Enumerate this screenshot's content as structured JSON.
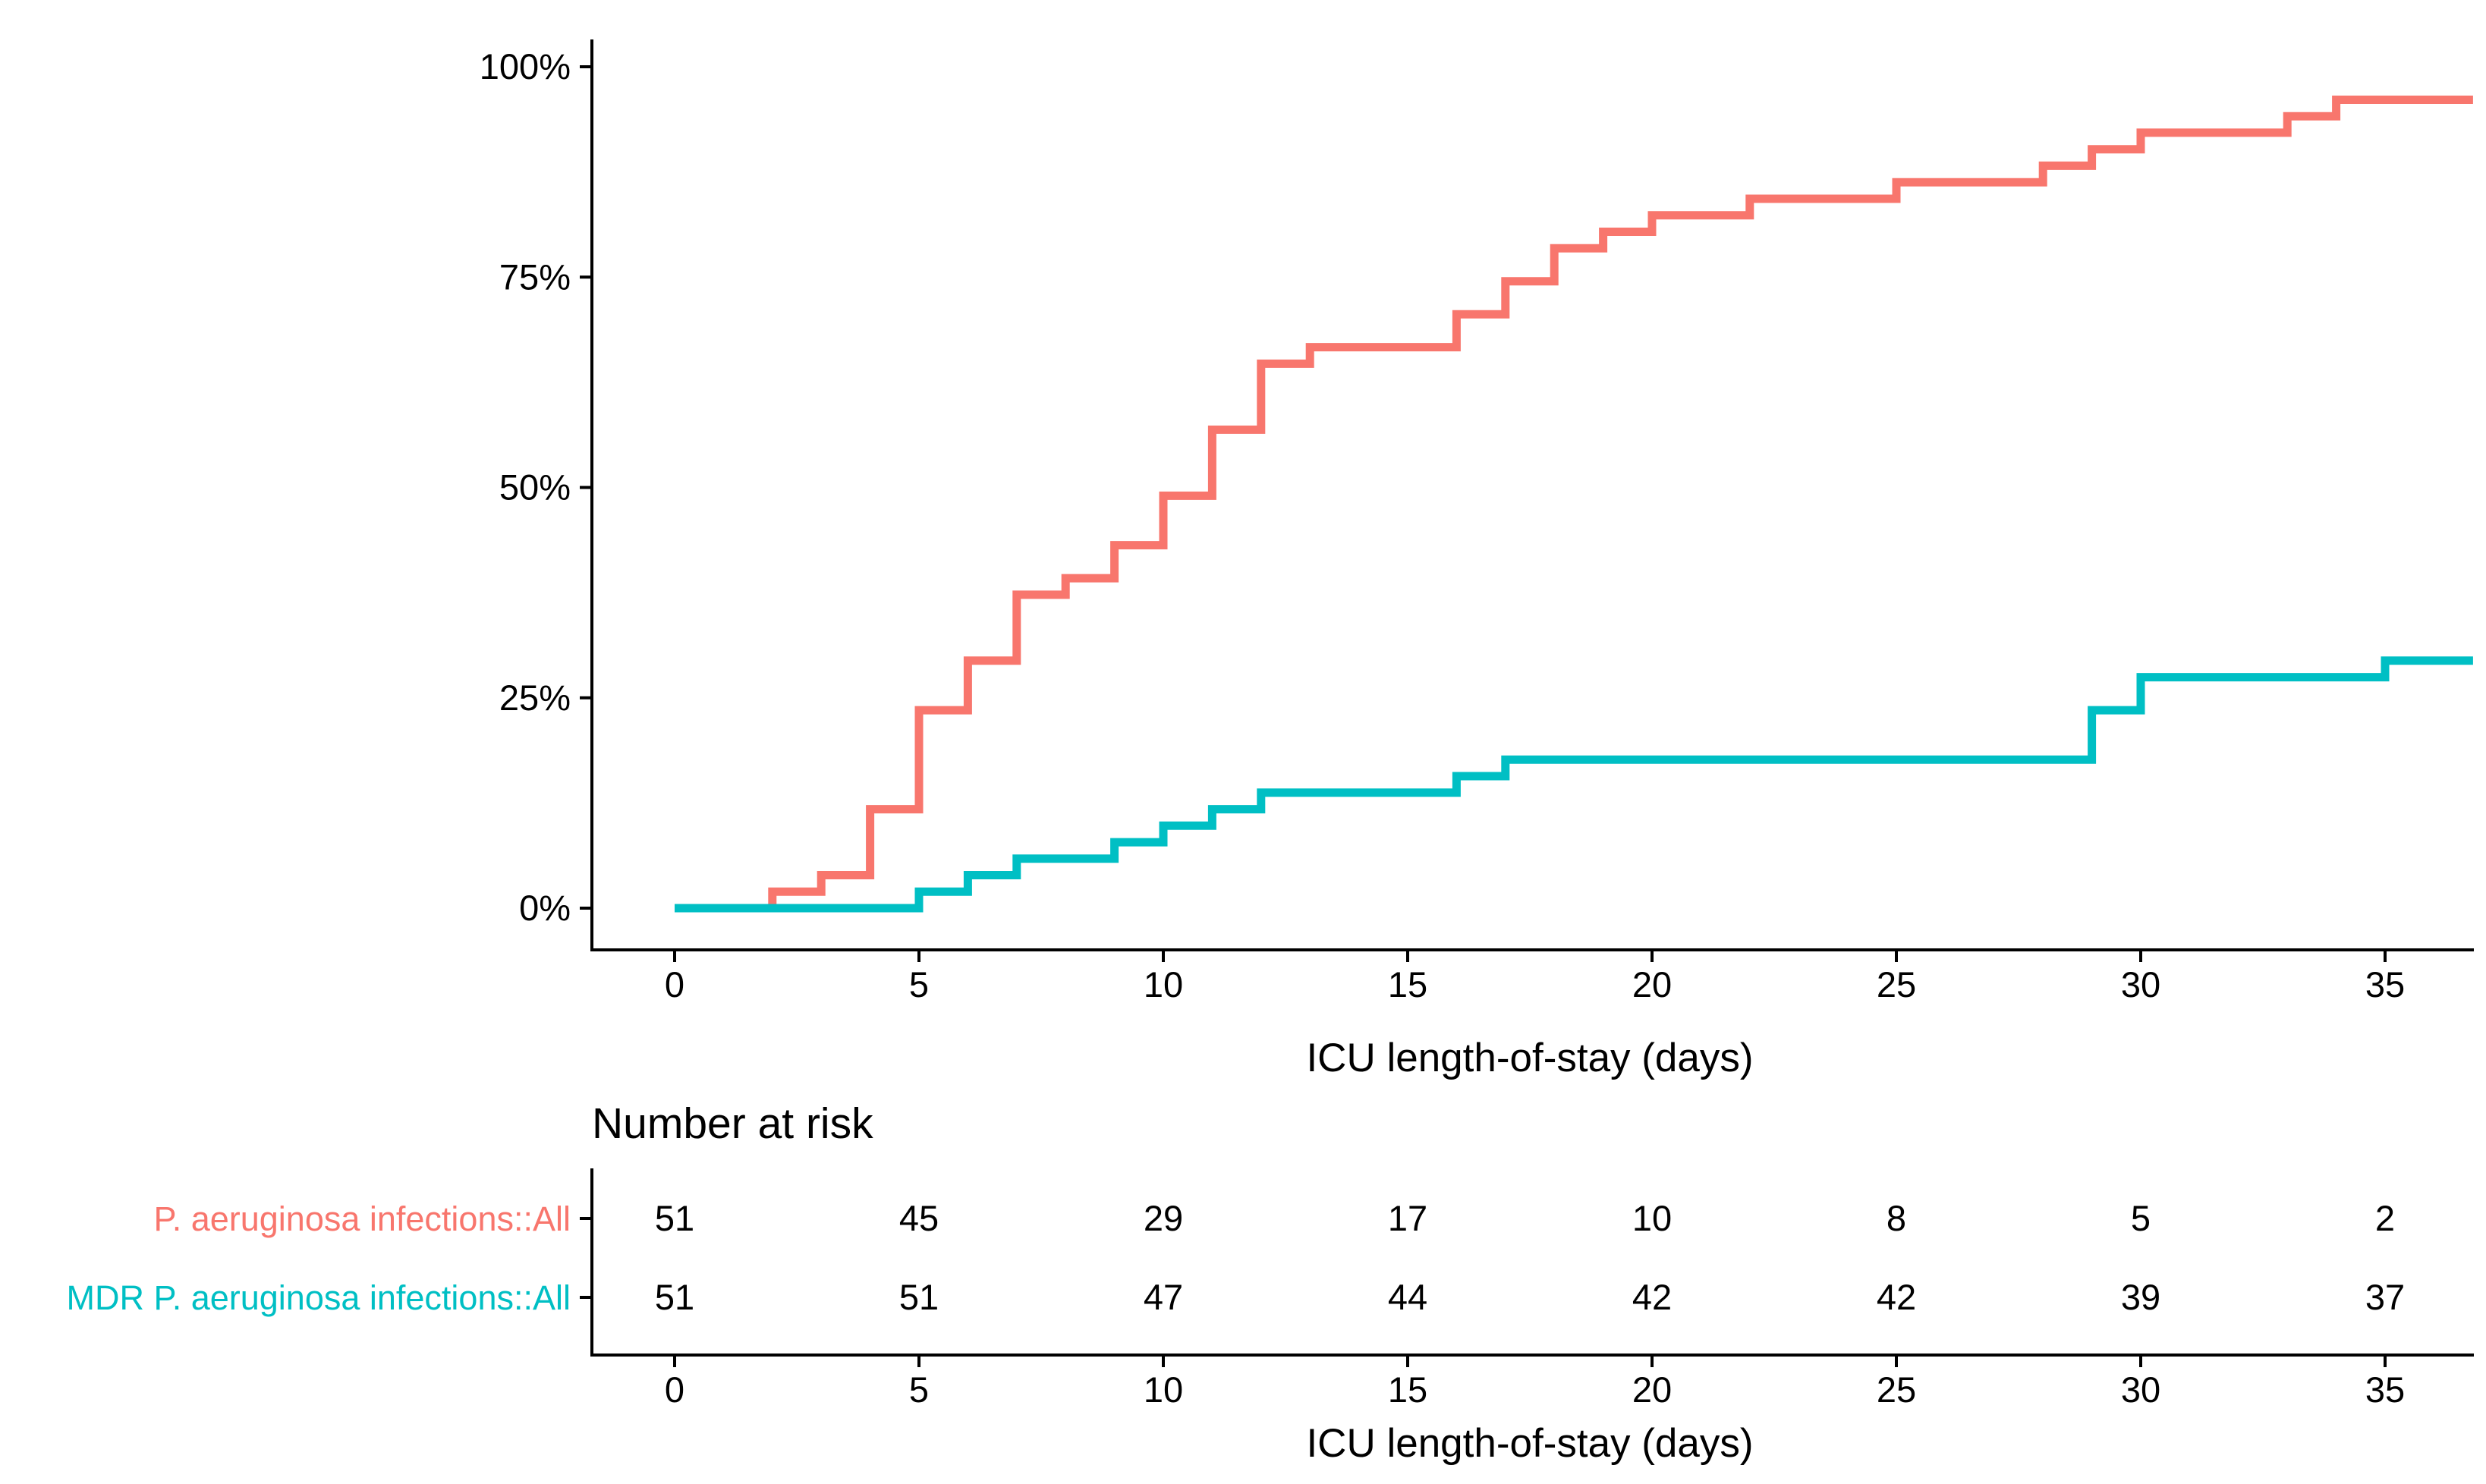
{
  "chart_data": {
    "type": "line",
    "subtype": "step-cumulative-incidence",
    "title": "",
    "xlabel": "ICU length-of-stay (days)",
    "ylabel": "",
    "x_ticks": [
      0,
      5,
      10,
      15,
      20,
      25,
      30,
      35
    ],
    "xlim": [
      -1.7,
      36.9
    ],
    "y_ticks": [
      0,
      25,
      50,
      75,
      100
    ],
    "y_tick_labels": [
      "0%",
      "25%",
      "50%",
      "75%",
      "100%"
    ],
    "ylim": [
      0,
      100
    ],
    "grid": false,
    "legend_position": "none",
    "series": [
      {
        "name": "P. aeruginosa infections::All",
        "color": "#F8766D",
        "x_end": 36.8,
        "steps": [
          [
            0,
            0
          ],
          [
            2,
            1.96
          ],
          [
            3,
            3.92
          ],
          [
            4,
            11.76
          ],
          [
            5,
            23.53
          ],
          [
            6,
            29.41
          ],
          [
            7,
            37.25
          ],
          [
            8,
            39.22
          ],
          [
            9,
            43.14
          ],
          [
            10,
            49.02
          ],
          [
            11,
            56.86
          ],
          [
            12,
            64.71
          ],
          [
            13,
            66.67
          ],
          [
            16,
            70.59
          ],
          [
            17,
            74.51
          ],
          [
            18,
            78.43
          ],
          [
            19,
            80.39
          ],
          [
            20,
            82.35
          ],
          [
            22,
            84.31
          ],
          [
            25,
            86.27
          ],
          [
            28,
            88.24
          ],
          [
            29,
            90.2
          ],
          [
            30,
            92.16
          ],
          [
            33,
            94.12
          ],
          [
            34,
            96.08
          ]
        ]
      },
      {
        "name": "MDR P. aeruginosa infections::All",
        "color": "#00BFC4",
        "x_end": 36.8,
        "steps": [
          [
            0,
            0
          ],
          [
            5,
            1.96
          ],
          [
            6,
            3.92
          ],
          [
            7,
            5.88
          ],
          [
            9,
            7.84
          ],
          [
            10,
            9.8
          ],
          [
            11,
            11.76
          ],
          [
            12,
            13.73
          ],
          [
            16,
            15.69
          ],
          [
            17,
            17.65
          ],
          [
            29,
            23.53
          ],
          [
            30,
            27.45
          ],
          [
            35,
            29.41
          ]
        ]
      }
    ],
    "risk_table": {
      "title": "Number at risk",
      "xlabel": "ICU length-of-stay (days)",
      "x_ticks": [
        0,
        5,
        10,
        15,
        20,
        25,
        30,
        35
      ],
      "rows": [
        {
          "label": "P. aeruginosa infections::All",
          "color": "#F8766D",
          "values": [
            51,
            45,
            29,
            17,
            10,
            8,
            5,
            2
          ]
        },
        {
          "label": "MDR P. aeruginosa infections::All",
          "color": "#00BFC4",
          "values": [
            51,
            51,
            47,
            44,
            42,
            42,
            39,
            37
          ]
        }
      ]
    }
  }
}
